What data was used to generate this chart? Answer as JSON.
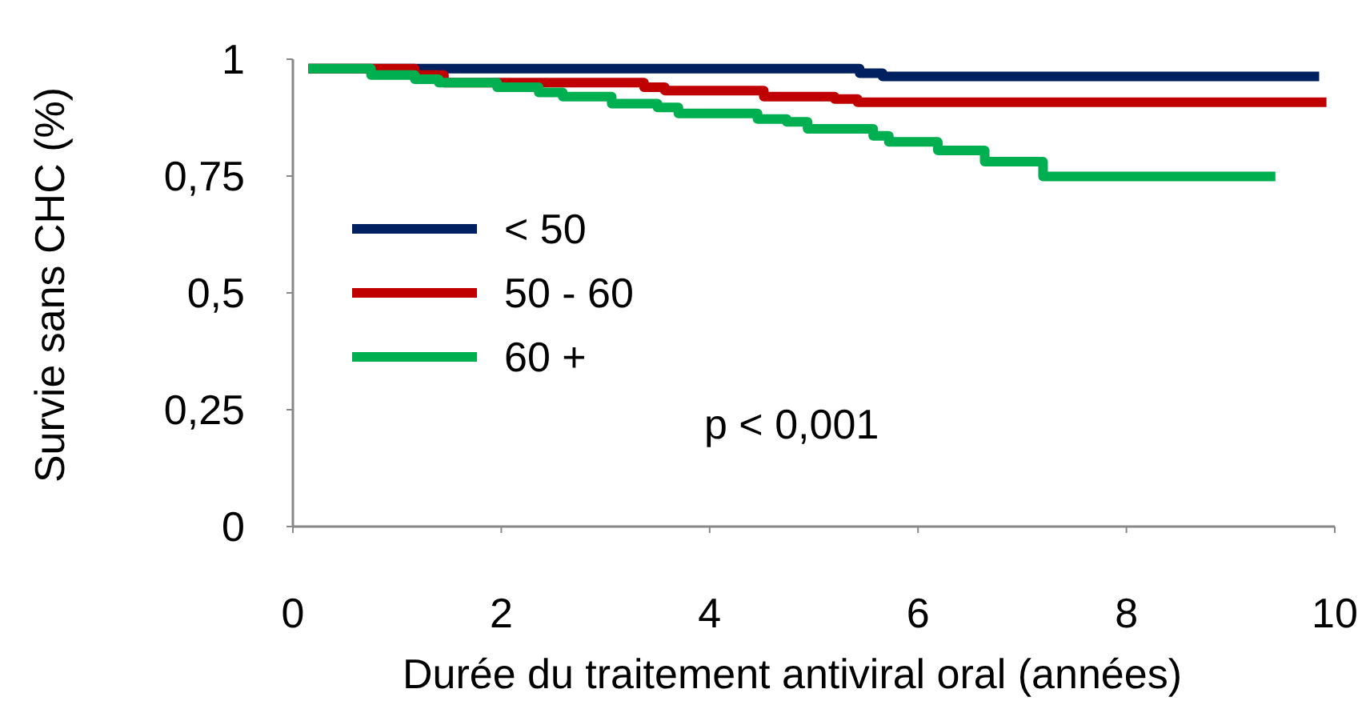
{
  "chart_data": {
    "type": "step",
    "xlabel": "Durée du traitement antiviral oral (années)",
    "ylabel": "Survie sans CHC (%)",
    "xlim": [
      0,
      10
    ],
    "ylim": [
      0,
      1
    ],
    "xticks": [
      0,
      2,
      4,
      6,
      8,
      10
    ],
    "yticks": [
      0,
      {
        "value": 0.25,
        "label": "0,25"
      },
      {
        "value": 0.5,
        "label": "0,5"
      },
      {
        "value": 0.75,
        "label": "0,75"
      },
      1
    ],
    "grid": false,
    "legend": "left",
    "annotations": [
      "p < 0,001"
    ],
    "series": [
      {
        "name": "< 50",
        "color": "#002060",
        "x": [
          0.15,
          5.44,
          5.66,
          9.85
        ],
        "values": [
          0.98,
          0.97,
          0.963,
          0.963
        ]
      },
      {
        "name": "50 - 60",
        "color": "#c00000",
        "x": [
          0.15,
          1.17,
          1.45,
          3.37,
          3.57,
          4.52,
          5.2,
          5.42,
          9.92
        ],
        "values": [
          0.98,
          0.966,
          0.95,
          0.94,
          0.933,
          0.92,
          0.915,
          0.908,
          0.908
        ]
      },
      {
        "name": "60 +",
        "color": "#00b050",
        "x": [
          0.15,
          0.75,
          1.17,
          1.4,
          1.96,
          2.36,
          2.59,
          3.06,
          3.5,
          3.7,
          4.46,
          4.74,
          4.94,
          5.57,
          5.72,
          6.19,
          6.64,
          7.2,
          9.43
        ],
        "values": [
          0.98,
          0.966,
          0.957,
          0.95,
          0.94,
          0.929,
          0.92,
          0.905,
          0.897,
          0.884,
          0.872,
          0.866,
          0.851,
          0.836,
          0.823,
          0.805,
          0.781,
          0.749,
          0.749
        ]
      }
    ]
  }
}
